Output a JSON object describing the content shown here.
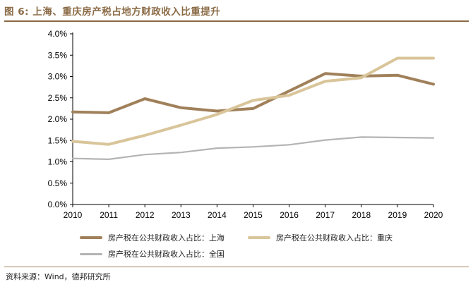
{
  "header": {
    "figure_label": "图 6:",
    "title": "上海、重庆房产税占地方财政收入比重提升"
  },
  "footer": {
    "source": "资料来源：Wind，德邦研究所"
  },
  "colors": {
    "accent": "#8a6a45",
    "shanghai": "#a0805a",
    "chongqing": "#d9c59a",
    "national": "#b4b4b4",
    "axis": "#000000"
  },
  "chart_data": {
    "type": "line",
    "title": "上海、重庆房产税占地方财政收入比重提升",
    "xlabel": "",
    "ylabel": "",
    "x": [
      "2010",
      "2011",
      "2012",
      "2013",
      "2014",
      "2015",
      "2016",
      "2017",
      "2018",
      "2019",
      "2020"
    ],
    "y_ticks": [
      "0.0%",
      "0.5%",
      "1.0%",
      "1.5%",
      "2.0%",
      "2.5%",
      "3.0%",
      "3.5%",
      "4.0%"
    ],
    "ylim": [
      0,
      4.0
    ],
    "grid": false,
    "legend_position": "bottom",
    "series": [
      {
        "name": "房产税在公共财政收入占比：上海",
        "color_key": "shanghai",
        "values": [
          2.17,
          2.15,
          2.48,
          2.27,
          2.19,
          2.25,
          2.66,
          3.07,
          3.01,
          3.03,
          2.82
        ]
      },
      {
        "name": "房产税在公共财政收入占比：重庆",
        "color_key": "chongqing",
        "values": [
          1.48,
          1.41,
          1.62,
          1.86,
          2.11,
          2.44,
          2.56,
          2.89,
          2.97,
          3.43,
          3.43
        ]
      },
      {
        "name": "房产税在公共财政收入占比：全国",
        "color_key": "national",
        "values": [
          1.08,
          1.06,
          1.17,
          1.22,
          1.32,
          1.35,
          1.4,
          1.51,
          1.58,
          1.57,
          1.56
        ]
      }
    ]
  }
}
